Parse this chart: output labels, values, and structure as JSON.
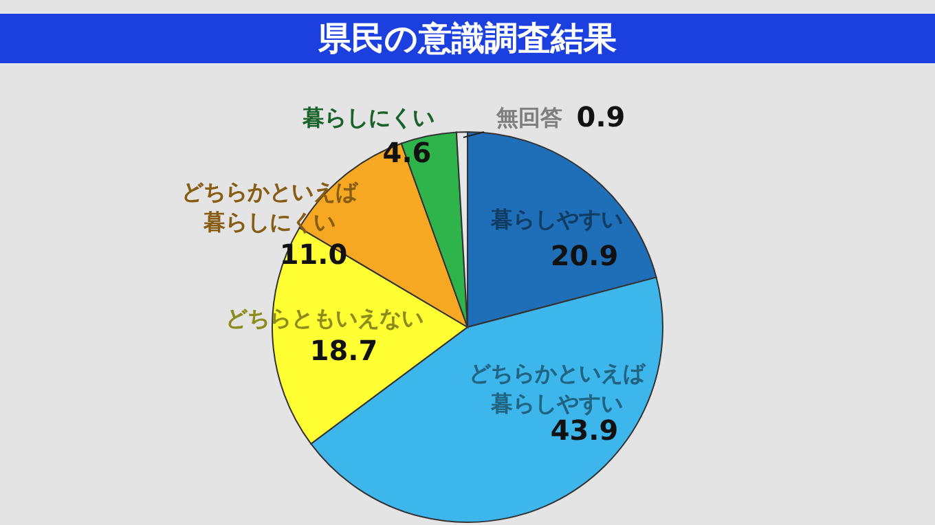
{
  "chart_data": {
    "type": "pie",
    "title": "県民の意識調査結果",
    "categories": [
      "暮らしやすい",
      "どちらかといえば暮らしやすい",
      "どちらともいえない",
      "どちらかといえば暮らしにくい",
      "暮らしにくい",
      "無回答"
    ],
    "values": [
      20.9,
      43.9,
      18.7,
      11.0,
      4.6,
      0.9
    ],
    "value_labels": [
      "20.9",
      "43.9",
      "18.7",
      "11.0",
      "4.6",
      "0.9"
    ],
    "colors": [
      "#1f6fb8",
      "#3db6ec",
      "#ffff33",
      "#f7a823",
      "#2fb34b",
      "#e6e6e6"
    ]
  }
}
